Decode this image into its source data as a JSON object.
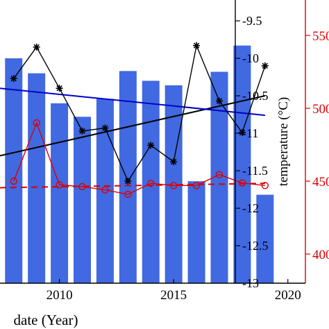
{
  "chart_data": {
    "type": "bar",
    "xlabel": "date  (Year)",
    "ylabel_right_red": "temperature (°C)",
    "x_ticks": [
      2010,
      2015,
      2020
    ],
    "xlim": [
      2007.4,
      2021.8
    ],
    "y_right_black": {
      "lim": [
        -13,
        -9.5
      ],
      "ticks": [
        -13,
        -12.5,
        -12,
        -11.5,
        -11,
        -10.5,
        -10,
        -9.5
      ],
      "tick_labels": [
        "-13",
        "-12.5",
        "-12",
        "-11.5",
        "-11",
        "-10.5",
        "-10",
        "-9.5"
      ]
    },
    "y_right_red": {
      "lim": [
        3800,
        5600
      ],
      "ticks": [
        4000,
        4500,
        5000,
        5500
      ],
      "tick_labels": [
        "400",
        "450",
        "500",
        "550"
      ]
    },
    "colors": {
      "bars": "#4169e1",
      "black_series": "#000000",
      "black_trend": "#000000",
      "blue_trend": "#0000cc",
      "red_series": "#dd0000",
      "red_axis": "#dd0000"
    },
    "bars": {
      "axis": "black",
      "x": [
        2008,
        2009,
        2010,
        2011,
        2012,
        2013,
        2014,
        2015,
        2016,
        2017,
        2018,
        2019
      ],
      "values": [
        -10.0,
        -10.2,
        -10.6,
        -10.78,
        -10.54,
        -10.17,
        -10.3,
        -10.36,
        -11.64,
        -10.18,
        -9.83,
        -11.82
      ]
    },
    "series": [
      {
        "axis": "black",
        "marker": "asterisk",
        "x": [
          2008,
          2009,
          2010,
          2011,
          2012,
          2013,
          2014,
          2015,
          2016,
          2017,
          2018,
          2019
        ],
        "values": [
          -10.27,
          -9.85,
          -10.4,
          -10.97,
          -10.93,
          -11.64,
          -11.16,
          -11.38,
          -9.83,
          -10.57,
          -10.99,
          -10.1
        ]
      },
      {
        "axis": "red",
        "marker": "circle",
        "x": [
          2008,
          2009,
          2010,
          2011,
          2012,
          2013,
          2014,
          2015,
          2016,
          2017,
          2018,
          2019
        ],
        "values": [
          4500,
          4900,
          4475,
          4462,
          4440,
          4410,
          4485,
          4470,
          4470,
          4545,
          4488,
          4470
        ]
      }
    ],
    "trend_lines": [
      {
        "axis": "black",
        "style": "solid",
        "x": [
          2007.4,
          2019
        ],
        "values": [
          -11.3,
          -10.5
        ]
      },
      {
        "axis": "black",
        "style": "solid",
        "color_key": "blue_trend",
        "x": [
          2007.4,
          2019
        ],
        "values": [
          -10.4,
          -10.76
        ]
      },
      {
        "axis": "red",
        "style": "dashed",
        "x": [
          2007.4,
          2019
        ],
        "values": [
          4455,
          4485
        ]
      }
    ]
  }
}
